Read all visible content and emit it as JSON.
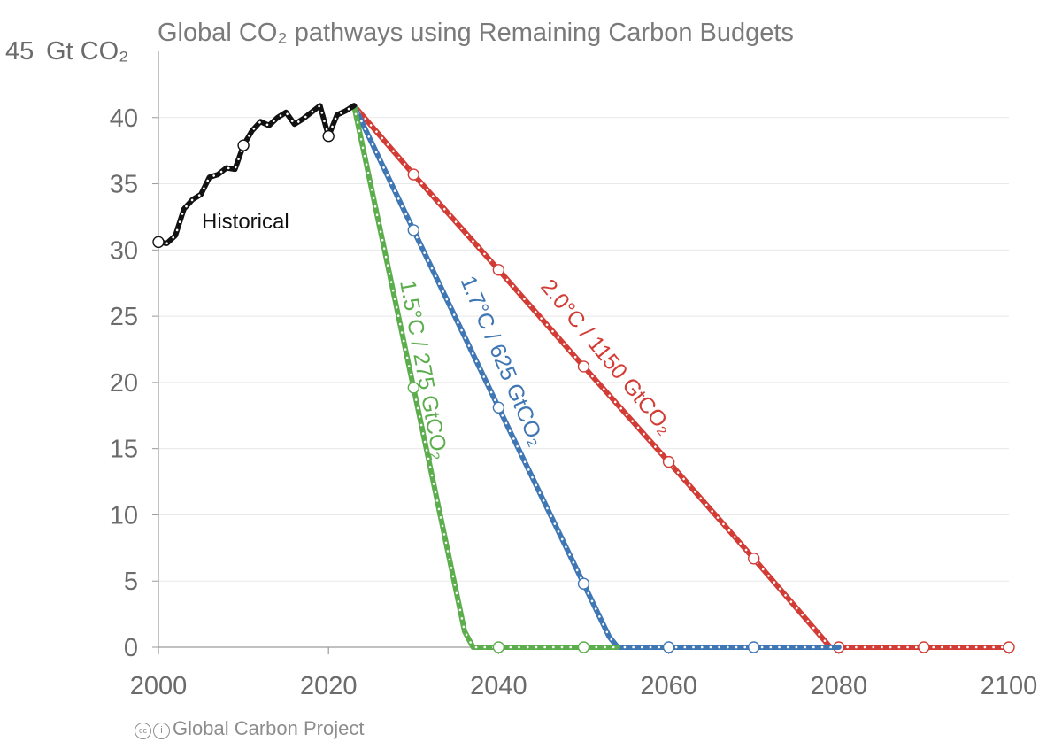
{
  "chart_data": {
    "type": "line",
    "title": "Global CO₂ pathways using Remaining Carbon Budgets",
    "ylabel": "Gt CO₂",
    "ylabel_top_tick": "45",
    "xlim": [
      2000,
      2100
    ],
    "ylim": [
      0,
      45
    ],
    "x_ticks": [
      2000,
      2020,
      2040,
      2060,
      2080,
      2100
    ],
    "y_ticks": [
      0,
      5,
      10,
      15,
      20,
      25,
      30,
      35,
      40
    ],
    "grid": "horizontal",
    "series": [
      {
        "name": "Historical",
        "color": "#111111",
        "x": [
          2000,
          2001,
          2002,
          2003,
          2004,
          2005,
          2006,
          2007,
          2008,
          2009,
          2010,
          2011,
          2012,
          2013,
          2014,
          2015,
          2016,
          2017,
          2018,
          2019,
          2020,
          2021,
          2022,
          2023
        ],
        "y": [
          30.6,
          30.5,
          31.1,
          33.1,
          33.8,
          34.2,
          35.5,
          35.7,
          36.2,
          36.1,
          37.9,
          39.0,
          39.7,
          39.4,
          40.0,
          40.4,
          39.5,
          39.9,
          40.4,
          40.9,
          38.6,
          40.2,
          40.5,
          40.9
        ],
        "markers_x": [
          2000,
          2010,
          2020
        ]
      },
      {
        "name": "1.5°C / 275 GtCO₂",
        "color": "#5cae4d",
        "x": [
          2023,
          2030,
          2036,
          2037,
          2040,
          2050,
          2054
        ],
        "y": [
          40.9,
          19.6,
          1.2,
          0,
          0,
          0,
          0
        ],
        "markers_x": [
          2030,
          2040,
          2050
        ]
      },
      {
        "name": "1.7°C / 625 GtCO₂",
        "color": "#3f76b4",
        "x": [
          2023,
          2030,
          2040,
          2050,
          2053,
          2054,
          2060,
          2070,
          2080
        ],
        "y": [
          40.9,
          31.5,
          18.1,
          4.8,
          0.8,
          0,
          0,
          0,
          0
        ],
        "markers_x": [
          2030,
          2040,
          2050,
          2060,
          2070
        ]
      },
      {
        "name": "2.0°C / 1150 GtCO₂",
        "color": "#d33b35",
        "x": [
          2023,
          2030,
          2040,
          2050,
          2060,
          2070,
          2079,
          2080,
          2090,
          2100
        ],
        "y": [
          40.9,
          35.7,
          28.5,
          21.2,
          14.0,
          6.7,
          0,
          0,
          0,
          0
        ],
        "markers_x": [
          2030,
          2040,
          2050,
          2060,
          2070,
          2080,
          2090,
          2100
        ]
      }
    ]
  },
  "footer": {
    "cc_icon": "cc",
    "by_icon": "i",
    "credit": "Global Carbon Project"
  }
}
